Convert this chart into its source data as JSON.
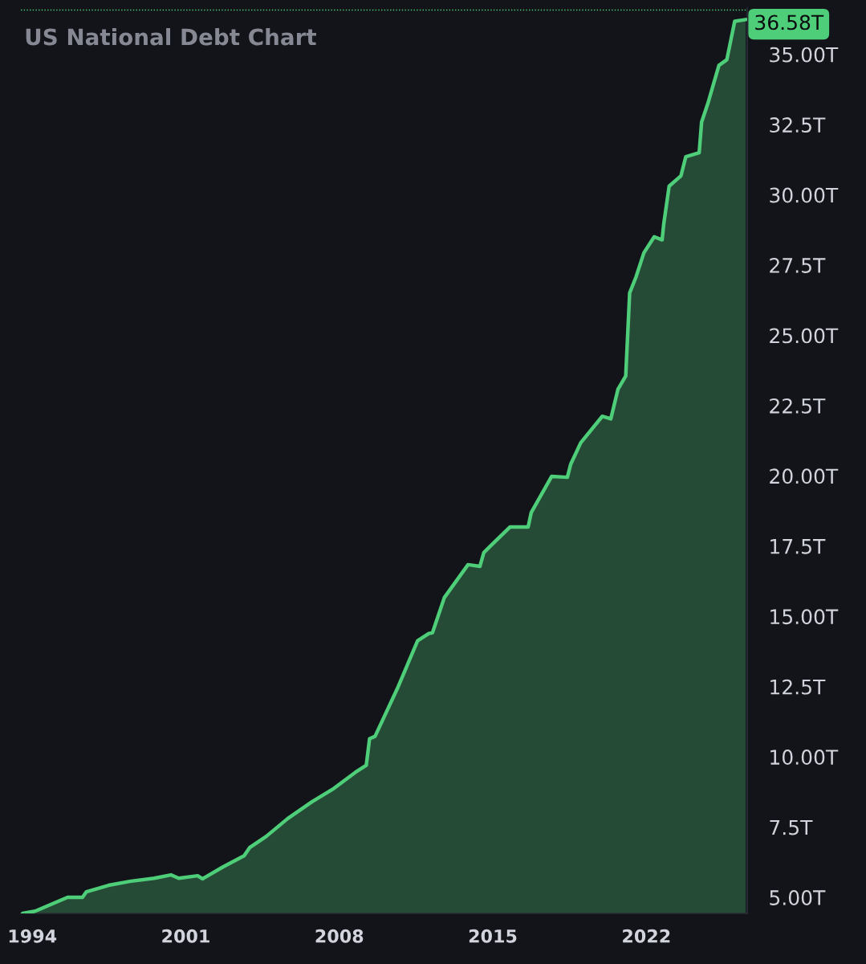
{
  "chart_data": {
    "type": "area",
    "title": "US National Debt Chart",
    "x": [
      1993.56,
      1994.13,
      1995.61,
      1996.29,
      1996.47,
      1997.48,
      1998.45,
      1999.56,
      2000.32,
      2000.68,
      2001.54,
      2001.76,
      2002.69,
      2003.66,
      2003.91,
      2004.67,
      2005.64,
      2006.75,
      2007.76,
      2008.73,
      2009.23,
      2009.38,
      2009.63,
      2010.64,
      2011.57,
      2012.08,
      2012.25,
      2012.79,
      2013.87,
      2014.41,
      2014.59,
      2014.95,
      2015.78,
      2016.61,
      2016.75,
      2017.68,
      2018.4,
      2018.55,
      2019.01,
      2019.99,
      2020.38,
      2020.71,
      2021.06,
      2021.24,
      2021.53,
      2021.89,
      2022.36,
      2022.72,
      2022.79,
      2023.04,
      2023.58,
      2023.8,
      2024.41,
      2024.52,
      2024.8,
      2025.31,
      2025.67,
      2026.03,
      2026.53
    ],
    "series": [
      {
        "color": "#4fce7a",
        "values": [
          4.43,
          4.51,
          5.0,
          5.0,
          5.2,
          5.43,
          5.57,
          5.68,
          5.8,
          5.68,
          5.77,
          5.66,
          6.08,
          6.48,
          6.77,
          7.17,
          7.8,
          8.4,
          8.88,
          9.45,
          9.7,
          10.65,
          10.73,
          12.42,
          14.13,
          14.39,
          14.42,
          15.67,
          16.84,
          16.78,
          17.27,
          17.55,
          18.18,
          18.18,
          18.69,
          19.98,
          19.95,
          20.41,
          21.18,
          22.12,
          22.03,
          23.09,
          23.55,
          26.51,
          27.08,
          27.94,
          28.51,
          28.4,
          28.94,
          30.31,
          30.68,
          31.36,
          31.5,
          32.59,
          33.24,
          34.61,
          34.81,
          36.18,
          36.24
        ]
      }
    ],
    "xlim": [
      1993.48,
      2026.6
    ],
    "ylim": [
      4.43,
      36.65
    ],
    "xticks": [
      1994,
      2001,
      2008,
      2015,
      2022
    ],
    "yticks": [
      {
        "value": 5,
        "label": "5.00T"
      },
      {
        "value": 7.5,
        "label": "7.5T"
      },
      {
        "value": 10,
        "label": "10.00T"
      },
      {
        "value": 12.5,
        "label": "12.5T"
      },
      {
        "value": 15,
        "label": "15.00T"
      },
      {
        "value": 17.5,
        "label": "17.5T"
      },
      {
        "value": 20,
        "label": "20.00T"
      },
      {
        "value": 22.5,
        "label": "22.5T"
      },
      {
        "value": 25,
        "label": "25.00T"
      },
      {
        "value": 27.5,
        "label": "27.5T"
      },
      {
        "value": 30,
        "label": "30.00T"
      },
      {
        "value": 32.5,
        "label": "32.5T"
      },
      {
        "value": 35,
        "label": "35.00T"
      }
    ],
    "ref_lines": [
      {
        "axis": "y",
        "value": 36.58,
        "label": "36.58T",
        "color": "#4fce7a",
        "line_style": "dotted"
      }
    ]
  }
}
